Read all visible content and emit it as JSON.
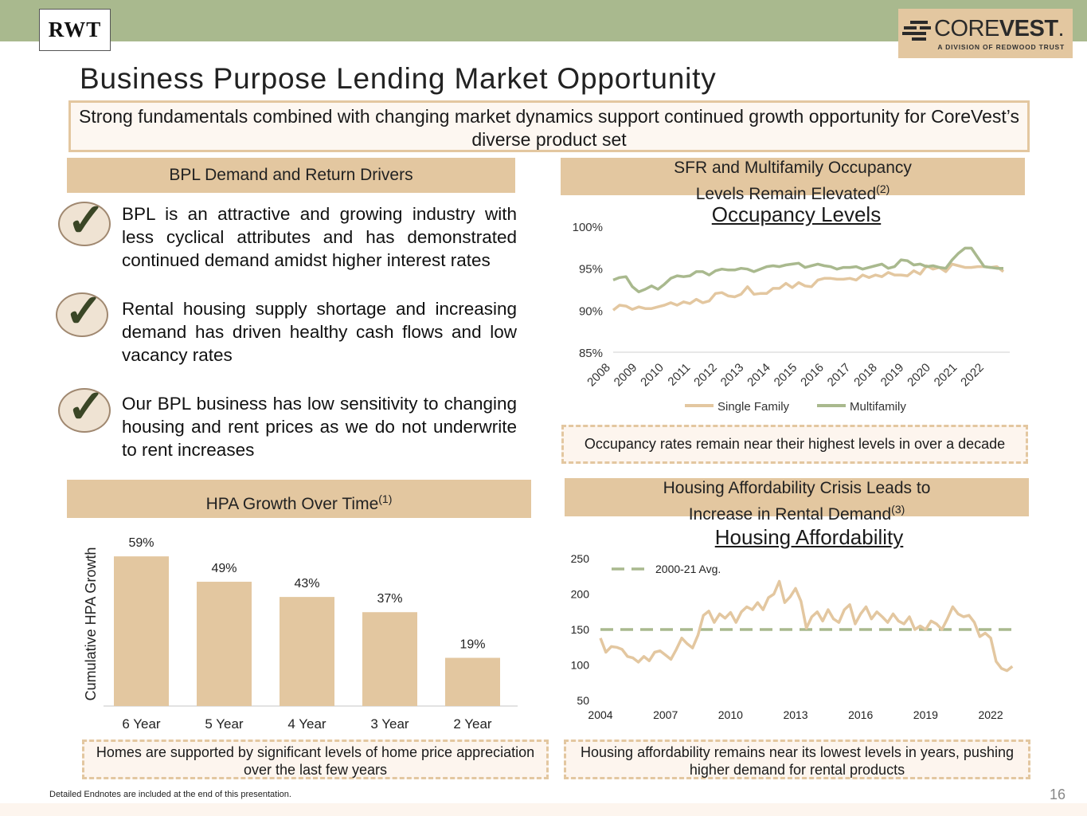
{
  "header": {
    "logo_text": "RWT",
    "corevest_prefix": "CORE",
    "corevest_bold": "VEST",
    "corevest_mark": ".",
    "corevest_sub": "A DIVISION OF REDWOOD TRUST"
  },
  "title": "Business Purpose Lending Market Opportunity",
  "subtitle": "Strong fundamentals combined with changing market dynamics support continued growth opportunity for CoreVest’s diverse product set",
  "left_top": {
    "header": "BPL Demand and Return Drivers",
    "bullets": [
      "BPL is an attractive and growing industry with less cyclical attributes and has demonstrated continued demand amidst higher interest rates",
      "Rental housing supply shortage and increasing demand has driven healthy cash flows and low vacancy rates",
      "Our BPL business has low sensitivity to changing housing and rent prices as we do not underwrite to rent increases"
    ]
  },
  "right_top": {
    "header_line1": "SFR and Multifamily Occupancy",
    "header_line2": "Levels Remain Elevated",
    "header_sup": "(2)",
    "note": "Occupancy rates remain near their highest levels in over a decade"
  },
  "left_bottom": {
    "header": "HPA Growth Over Time",
    "header_sup": "(1)",
    "note": "Homes are supported by significant levels of home price appreciation over the last few years"
  },
  "right_bottom": {
    "header_line1": "Housing Affordability Crisis Leads to",
    "header_line2": "Increase in Rental Demand",
    "header_sup": "(3)",
    "note": "Housing affordability remains near its lowest levels in years, pushing higher demand for rental products"
  },
  "footer": {
    "endnote": "Detailed Endnotes are included at the end of this presentation.",
    "page_number": "16"
  },
  "colors": {
    "sand": "#e3c7a0",
    "sage": "#a9b98e"
  },
  "chart_data": [
    {
      "type": "bar",
      "title": "",
      "categories": [
        "6 Year",
        "5 Year",
        "4 Year",
        "3 Year",
        "2 Year"
      ],
      "values": [
        59,
        49,
        43,
        37,
        19
      ],
      "value_labels": [
        "59%",
        "49%",
        "43%",
        "37%",
        "19%"
      ],
      "ylabel": "Cumulative HPA Growth",
      "ylim": [
        0,
        60
      ],
      "color": "#e3c7a0"
    },
    {
      "type": "line",
      "title": "Occupancy Levels",
      "x_ticks": [
        "2008",
        "2009",
        "2010",
        "2011",
        "2012",
        "2013",
        "2014",
        "2015",
        "2016",
        "2017",
        "2018",
        "2019",
        "2020",
        "2021",
        "2022"
      ],
      "y_ticks": [
        "85%",
        "90%",
        "95%",
        "100%"
      ],
      "ylim": [
        85,
        100
      ],
      "xlim": [
        2008,
        2023.5
      ],
      "legend": "bottom",
      "series": [
        {
          "name": "Single Family",
          "color": "#e3c7a0",
          "x": [
            2008.0,
            2008.25,
            2008.5,
            2008.75,
            2009.0,
            2009.25,
            2009.5,
            2009.75,
            2010.0,
            2010.25,
            2010.5,
            2010.75,
            2011.0,
            2011.25,
            2011.5,
            2011.75,
            2012.0,
            2012.25,
            2012.5,
            2012.75,
            2013.0,
            2013.25,
            2013.5,
            2013.75,
            2014.0,
            2014.25,
            2014.5,
            2014.75,
            2015.0,
            2015.25,
            2015.5,
            2015.75,
            2016.0,
            2016.25,
            2016.5,
            2016.75,
            2017.0,
            2017.25,
            2017.5,
            2017.75,
            2018.0,
            2018.25,
            2018.5,
            2018.75,
            2019.0,
            2019.25,
            2019.5,
            2019.75,
            2020.0,
            2020.25,
            2020.5,
            2020.75,
            2021.0,
            2021.25,
            2021.5,
            2021.75,
            2022.0,
            2022.25,
            2022.5,
            2022.75,
            2023.0,
            2023.25
          ],
          "values": [
            90.0,
            90.6,
            90.5,
            90.1,
            90.4,
            90.2,
            90.2,
            90.4,
            90.6,
            90.9,
            90.6,
            91.0,
            90.8,
            91.3,
            90.9,
            91.1,
            92.0,
            92.1,
            91.7,
            91.6,
            91.9,
            92.8,
            91.9,
            92.0,
            92.0,
            92.6,
            92.6,
            93.2,
            92.7,
            93.3,
            92.9,
            92.8,
            93.6,
            93.8,
            93.8,
            93.7,
            93.7,
            93.8,
            93.6,
            94.2,
            93.9,
            94.2,
            94.0,
            94.5,
            94.2,
            94.2,
            94.1,
            94.7,
            94.3,
            95.3,
            94.9,
            95.1,
            94.6,
            95.5,
            95.3,
            95.1,
            95.1,
            95.2,
            95.2,
            95.1,
            95.2,
            94.6
          ]
        },
        {
          "name": "Multifamily",
          "color": "#a9b98e",
          "x": [
            2008.0,
            2008.25,
            2008.5,
            2008.75,
            2009.0,
            2009.25,
            2009.5,
            2009.75,
            2010.0,
            2010.25,
            2010.5,
            2010.75,
            2011.0,
            2011.25,
            2011.5,
            2011.75,
            2012.0,
            2012.25,
            2012.5,
            2012.75,
            2013.0,
            2013.25,
            2013.5,
            2013.75,
            2014.0,
            2014.25,
            2014.5,
            2014.75,
            2015.0,
            2015.25,
            2015.5,
            2015.75,
            2016.0,
            2016.25,
            2016.5,
            2016.75,
            2017.0,
            2017.25,
            2017.5,
            2017.75,
            2018.0,
            2018.25,
            2018.5,
            2018.75,
            2019.0,
            2019.25,
            2019.5,
            2019.75,
            2020.0,
            2020.25,
            2020.5,
            2020.75,
            2021.0,
            2021.25,
            2021.5,
            2021.75,
            2022.0,
            2022.25,
            2022.5,
            2022.75,
            2023.0,
            2023.25
          ],
          "values": [
            93.6,
            93.9,
            94.0,
            92.8,
            92.2,
            92.5,
            92.9,
            92.5,
            93.1,
            93.8,
            94.1,
            94.0,
            94.1,
            94.6,
            94.6,
            94.2,
            94.7,
            94.9,
            94.8,
            94.8,
            95.0,
            94.9,
            94.6,
            94.9,
            95.2,
            95.3,
            95.2,
            95.4,
            95.5,
            95.6,
            95.1,
            95.3,
            95.5,
            95.3,
            95.2,
            94.9,
            95.1,
            95.1,
            95.2,
            94.9,
            95.1,
            95.3,
            95.5,
            95.0,
            95.2,
            96.0,
            95.9,
            95.4,
            95.5,
            95.2,
            95.3,
            95.1,
            95.0,
            96.0,
            96.8,
            97.4,
            97.4,
            96.3,
            95.2,
            95.1,
            95.0,
            95.0
          ]
        }
      ]
    },
    {
      "type": "line",
      "title": "Housing Affordability",
      "x_ticks": [
        "2004",
        "2007",
        "2010",
        "2013",
        "2016",
        "2019",
        "2022"
      ],
      "y_ticks": [
        "50",
        "100",
        "150",
        "200",
        "250"
      ],
      "ylim": [
        50,
        250
      ],
      "xlim": [
        2004,
        2023.1
      ],
      "legend": "top-left",
      "reference_line": {
        "name": "2000-21 Avg.",
        "value": 150,
        "color": "#a9b98e",
        "style": "dashed"
      },
      "series": [
        {
          "name": "Housing Affordability",
          "color": "#e3c7a0",
          "x": [
            2004.0,
            2004.25,
            2004.5,
            2004.75,
            2005.0,
            2005.25,
            2005.5,
            2005.75,
            2006.0,
            2006.25,
            2006.5,
            2006.75,
            2007.0,
            2007.25,
            2007.5,
            2007.75,
            2008.0,
            2008.25,
            2008.5,
            2008.75,
            2009.0,
            2009.25,
            2009.5,
            2009.75,
            2010.0,
            2010.25,
            2010.5,
            2010.75,
            2011.0,
            2011.25,
            2011.5,
            2011.75,
            2012.0,
            2012.25,
            2012.5,
            2012.75,
            2013.0,
            2013.25,
            2013.5,
            2013.75,
            2014.0,
            2014.25,
            2014.5,
            2014.75,
            2015.0,
            2015.25,
            2015.5,
            2015.75,
            2016.0,
            2016.25,
            2016.5,
            2016.75,
            2017.0,
            2017.25,
            2017.5,
            2017.75,
            2018.0,
            2018.25,
            2018.5,
            2018.75,
            2019.0,
            2019.25,
            2019.5,
            2019.75,
            2020.0,
            2020.25,
            2020.5,
            2020.75,
            2021.0,
            2021.25,
            2021.5,
            2021.75,
            2022.0,
            2022.25,
            2022.5,
            2022.75,
            2023.0
          ],
          "values": [
            138,
            118,
            126,
            125,
            122,
            112,
            110,
            104,
            112,
            106,
            118,
            120,
            114,
            108,
            122,
            138,
            130,
            124,
            142,
            170,
            176,
            160,
            172,
            166,
            174,
            160,
            175,
            182,
            178,
            188,
            178,
            195,
            200,
            218,
            188,
            196,
            208,
            190,
            152,
            168,
            175,
            162,
            178,
            165,
            160,
            178,
            185,
            158,
            172,
            182,
            165,
            175,
            168,
            160,
            172,
            162,
            158,
            168,
            150,
            155,
            150,
            162,
            158,
            150,
            165,
            182,
            172,
            168,
            170,
            160,
            140,
            145,
            138,
            105,
            95,
            92,
            98
          ]
        }
      ]
    }
  ]
}
